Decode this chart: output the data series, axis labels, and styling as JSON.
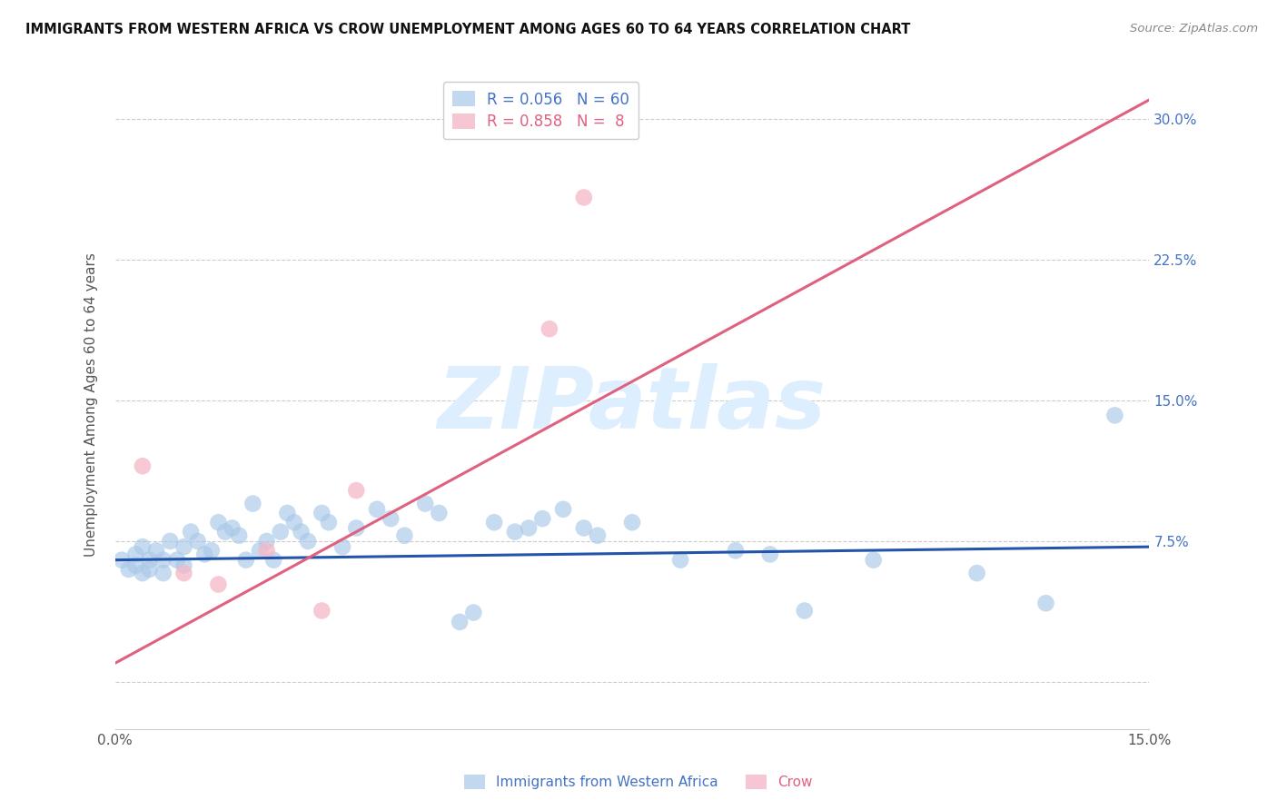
{
  "title": "IMMIGRANTS FROM WESTERN AFRICA VS CROW UNEMPLOYMENT AMONG AGES 60 TO 64 YEARS CORRELATION CHART",
  "source": "Source: ZipAtlas.com",
  "ylabel_left": "Unemployment Among Ages 60 to 64 years",
  "xlim": [
    0.0,
    0.15
  ],
  "ylim": [
    -0.025,
    0.32
  ],
  "xticks": [
    0.0,
    0.03,
    0.06,
    0.09,
    0.12,
    0.15
  ],
  "xtick_labels": [
    "0.0%",
    "",
    "",
    "",
    "",
    "15.0%"
  ],
  "yticks": [
    0.0,
    0.075,
    0.15,
    0.225,
    0.3
  ],
  "ytick_labels_right": [
    "",
    "7.5%",
    "15.0%",
    "22.5%",
    "30.0%"
  ],
  "blue_R": 0.056,
  "blue_N": 60,
  "pink_R": 0.858,
  "pink_N": 8,
  "blue_color": "#a8c8e8",
  "pink_color": "#f4b8c8",
  "blue_line_color": "#2255aa",
  "pink_line_color": "#e06080",
  "watermark": "ZIPatlas",
  "watermark_color": "#ddeeff",
  "legend_label_blue": "Immigrants from Western Africa",
  "legend_label_pink": "Crow",
  "blue_points_x": [
    0.001,
    0.002,
    0.003,
    0.003,
    0.004,
    0.004,
    0.005,
    0.005,
    0.006,
    0.007,
    0.007,
    0.008,
    0.009,
    0.01,
    0.01,
    0.011,
    0.012,
    0.013,
    0.014,
    0.015,
    0.016,
    0.017,
    0.018,
    0.019,
    0.02,
    0.021,
    0.022,
    0.023,
    0.024,
    0.025,
    0.026,
    0.027,
    0.028,
    0.03,
    0.031,
    0.033,
    0.035,
    0.038,
    0.04,
    0.042,
    0.045,
    0.047,
    0.05,
    0.052,
    0.055,
    0.058,
    0.06,
    0.062,
    0.065,
    0.068,
    0.07,
    0.075,
    0.082,
    0.09,
    0.095,
    0.1,
    0.11,
    0.125,
    0.135,
    0.145
  ],
  "blue_points_y": [
    0.065,
    0.06,
    0.068,
    0.062,
    0.072,
    0.058,
    0.065,
    0.06,
    0.07,
    0.065,
    0.058,
    0.075,
    0.065,
    0.072,
    0.062,
    0.08,
    0.075,
    0.068,
    0.07,
    0.085,
    0.08,
    0.082,
    0.078,
    0.065,
    0.095,
    0.07,
    0.075,
    0.065,
    0.08,
    0.09,
    0.085,
    0.08,
    0.075,
    0.09,
    0.085,
    0.072,
    0.082,
    0.092,
    0.087,
    0.078,
    0.095,
    0.09,
    0.032,
    0.037,
    0.085,
    0.08,
    0.082,
    0.087,
    0.092,
    0.082,
    0.078,
    0.085,
    0.065,
    0.07,
    0.068,
    0.038,
    0.065,
    0.058,
    0.042,
    0.142
  ],
  "pink_points_x": [
    0.004,
    0.01,
    0.015,
    0.022,
    0.03,
    0.035,
    0.063,
    0.068
  ],
  "pink_points_y": [
    0.115,
    0.058,
    0.052,
    0.07,
    0.038,
    0.102,
    0.188,
    0.258
  ],
  "blue_line_x": [
    0.0,
    0.15
  ],
  "blue_line_y": [
    0.065,
    0.072
  ],
  "pink_line_x": [
    0.0,
    0.15
  ],
  "pink_line_y": [
    0.01,
    0.31
  ]
}
